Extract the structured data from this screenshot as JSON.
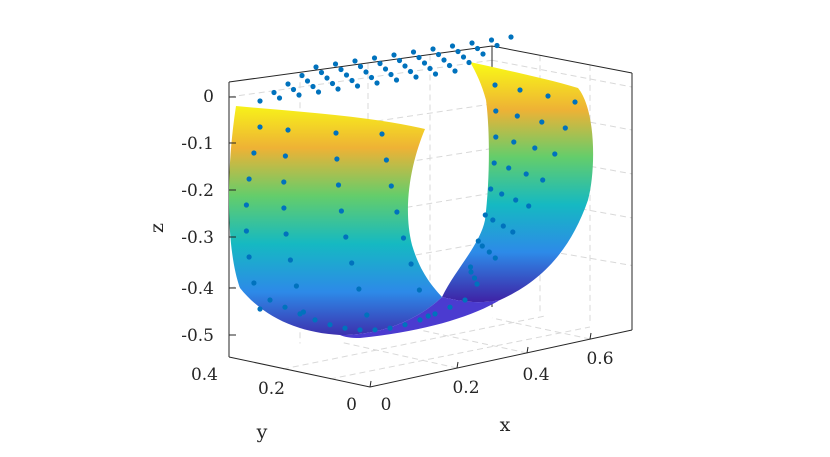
{
  "chart_data": {
    "type": "surface-3d-with-scatter",
    "title": "",
    "xlabel": "x",
    "ylabel": "y",
    "zlabel": "z",
    "xlim": [
      0,
      0.7
    ],
    "ylim": [
      0,
      0.4
    ],
    "zlim": [
      -0.5,
      0
    ],
    "xticks": [
      "0",
      "0.2",
      "0.4",
      "0.6"
    ],
    "yticks": [
      "0",
      "0.2",
      "0.4"
    ],
    "zticks": [
      "0",
      "-0.1",
      "-0.2",
      "-0.3",
      "-0.4",
      "-0.5"
    ],
    "grid": true,
    "colormap": "parula",
    "colormap_stops": [
      "#3e26a8",
      "#2d8ae8",
      "#15b9c2",
      "#64cd6b",
      "#eeb235",
      "#f9fb15"
    ],
    "scatter_color": "#0072bd",
    "surface": {
      "shape": "half-cylinder trough open along y",
      "x_range": [
        0.02,
        0.68
      ],
      "y_range": [
        0,
        0.35
      ],
      "z_range": [
        -0.5,
        0
      ]
    }
  }
}
